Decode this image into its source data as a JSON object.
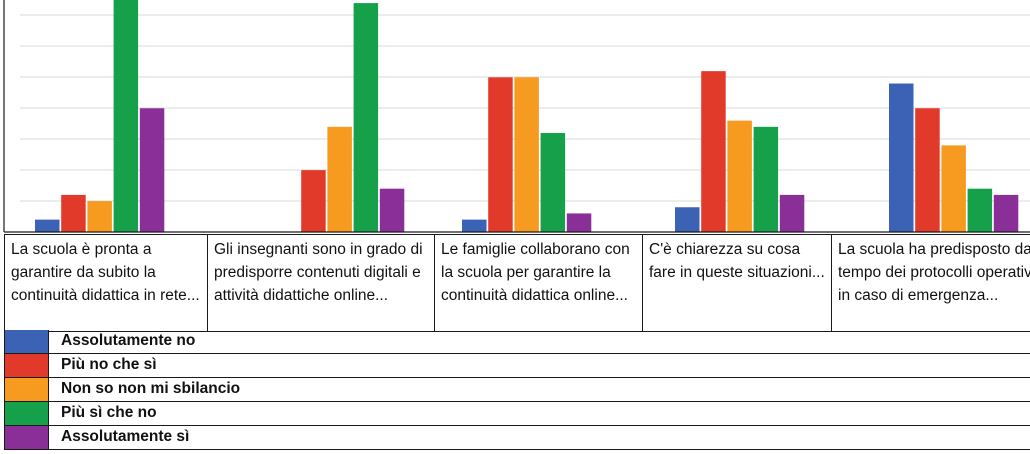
{
  "chart_data": {
    "type": "bar",
    "categories": [
      "La scuola è pronta a garantire da subito la continuità didattica in rete...",
      "Gli insegnanti sono in grado di predisporre contenuti digitali e attività didattiche online...",
      "Le famiglie collaborano con la scuola per garantire la continuità didattica online...",
      "C'è chiarezza su cosa fare in queste situazioni...",
      "La scuola ha predisposto da tempo dei protocolli operativi in caso di emergenza..."
    ],
    "series": [
      {
        "name": "Assolutamente no",
        "color": "#3b62b5",
        "values": [
          4,
          0,
          4,
          8,
          48
        ]
      },
      {
        "name": "Più no che sì",
        "color": "#e23a2a",
        "values": [
          12,
          20,
          50,
          52,
          40
        ]
      },
      {
        "name": "Non so non mi sbilancio",
        "color": "#f79a20",
        "values": [
          10,
          34,
          50,
          36,
          28
        ]
      },
      {
        "name": "Più sì che no",
        "color": "#17a04a",
        "values": [
          75,
          74,
          32,
          34,
          14
        ]
      },
      {
        "name": "Assolutamente sì",
        "color": "#8b2f98",
        "values": [
          40,
          14,
          6,
          12,
          12
        ]
      }
    ],
    "ylim": [
      0,
      75
    ],
    "grid": true,
    "legend_position": "bottom"
  }
}
